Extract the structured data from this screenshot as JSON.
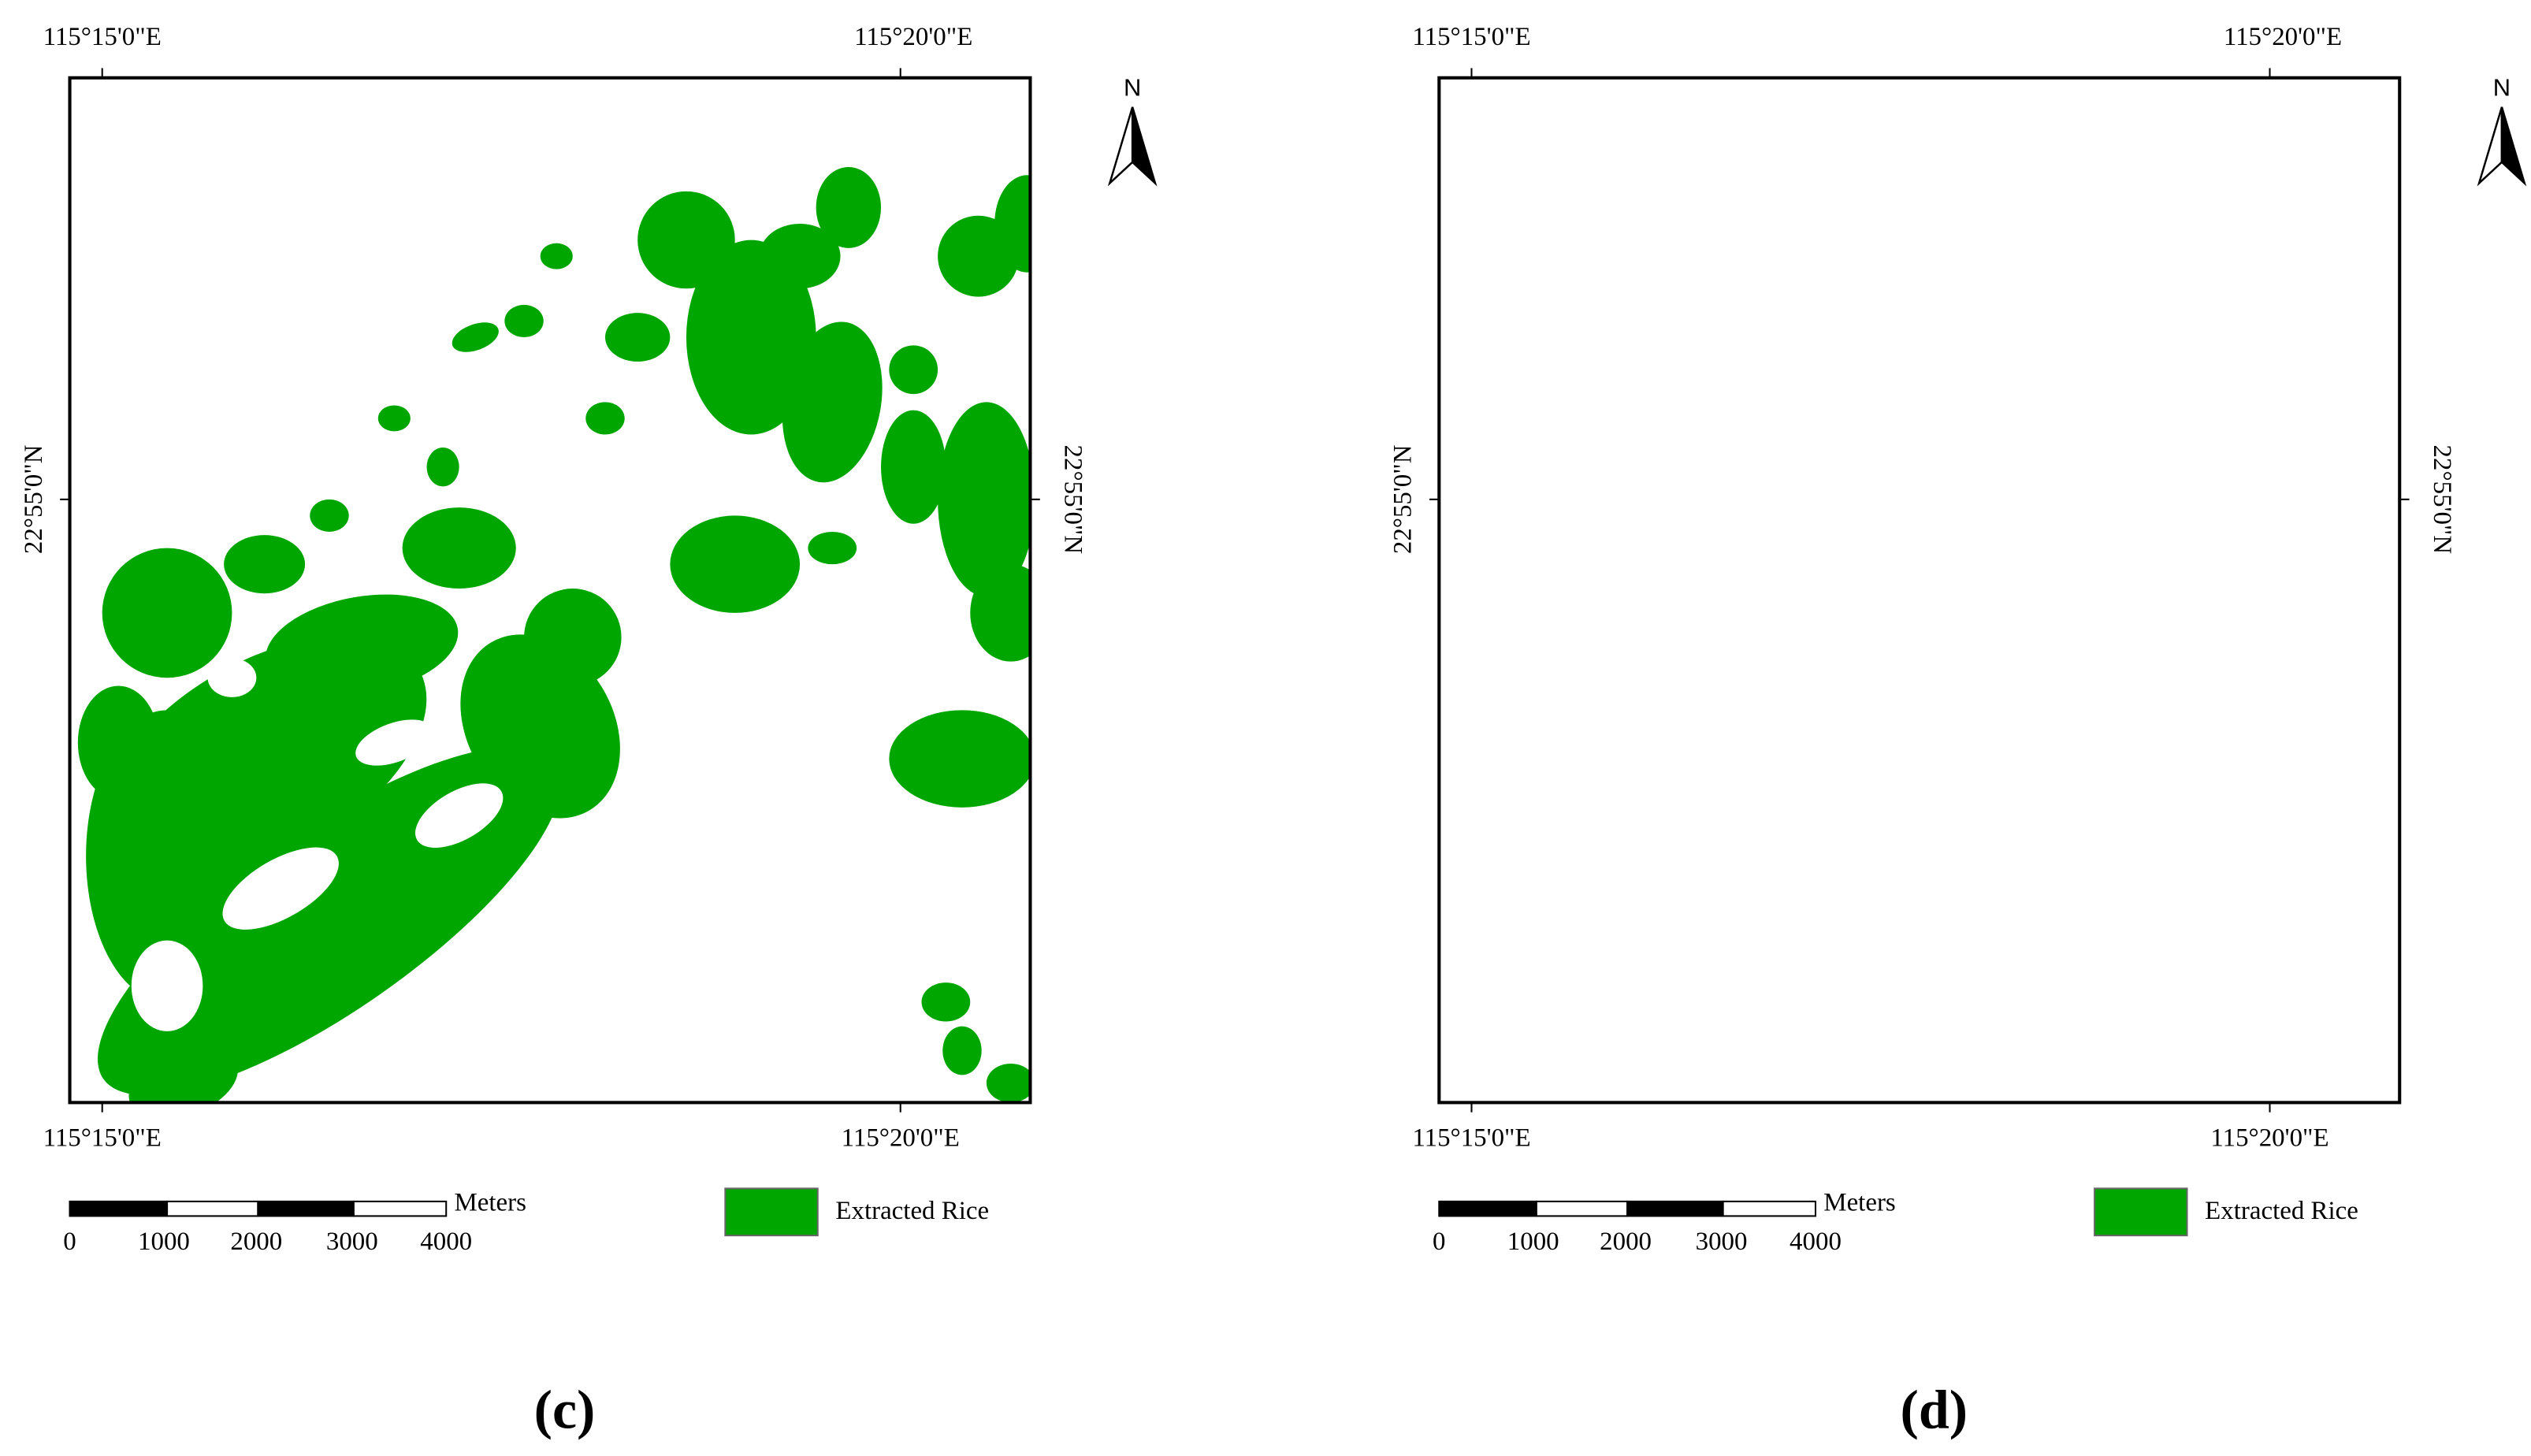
{
  "panels": [
    {
      "label": "(c)",
      "top_lon": [
        "115°15'0\"E",
        "115°20'0\"E"
      ],
      "bottom_lon": [
        "115°15'0\"E",
        "115°20'0\"E"
      ],
      "lat_left": "22°55'0\"N",
      "lat_right": "22°55'0\"N",
      "north": "N",
      "scale_unit": "Meters",
      "scale_ticks": [
        0,
        1000,
        2000,
        3000,
        4000
      ],
      "legend": "Extracted Rice"
    },
    {
      "label": "(d)",
      "top_lon": [
        "115°15'0\"E",
        "115°20'0\"E"
      ],
      "bottom_lon": [
        "115°15'0\"E",
        "115°20'0\"E"
      ],
      "lat_left": "22°55'0\"N",
      "lat_right": "22°55'0\"N",
      "north": "N",
      "scale_unit": "Meters",
      "scale_ticks": [
        0,
        1000,
        2000,
        3000,
        4000
      ],
      "legend": "Extracted Rice"
    }
  ]
}
